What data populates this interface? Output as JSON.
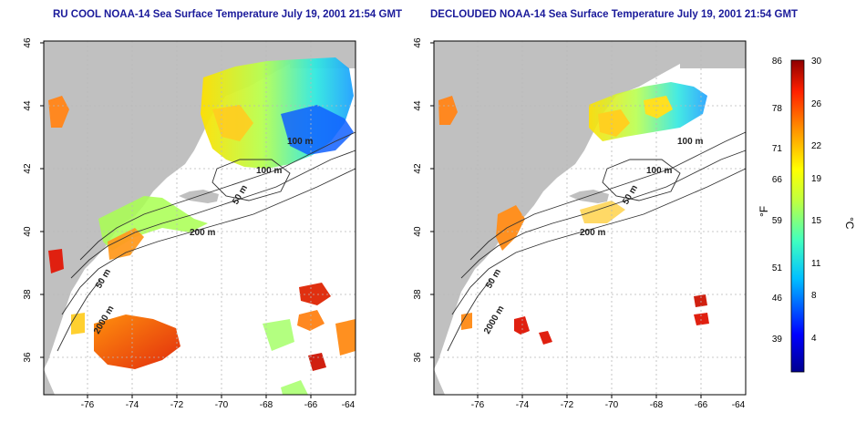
{
  "panels": [
    {
      "id": "left",
      "title": "RU COOL NOAA-14 Sea Surface Temperature July 19, 2001 21:54 GMT"
    },
    {
      "id": "right",
      "title": "DECLOUDED NOAA-14 Sea Surface Temperature July 19, 2001 21:54 GMT"
    }
  ],
  "axes": {
    "x_ticks": [
      "-76",
      "-74",
      "-72",
      "-70",
      "-68",
      "-66",
      "-64"
    ],
    "y_ticks": [
      "46",
      "44",
      "42",
      "40",
      "38",
      "36"
    ]
  },
  "contour_labels": [
    "100 m",
    "100 m",
    "50 m",
    "200 m",
    "50 m",
    "2000 m"
  ],
  "colorbar": {
    "f_label": "°F",
    "c_label": "°C",
    "f_ticks": [
      "86",
      "78",
      "71",
      "66",
      "59",
      "51",
      "46",
      "39"
    ],
    "c_ticks": [
      "30",
      "26",
      "22",
      "19",
      "15",
      "11",
      "8",
      "4"
    ]
  },
  "colors": {
    "land": "#c0c0c0",
    "ocean": "#ffffff",
    "title": "#1a1a9a",
    "grid": "#b8b8b8"
  }
}
